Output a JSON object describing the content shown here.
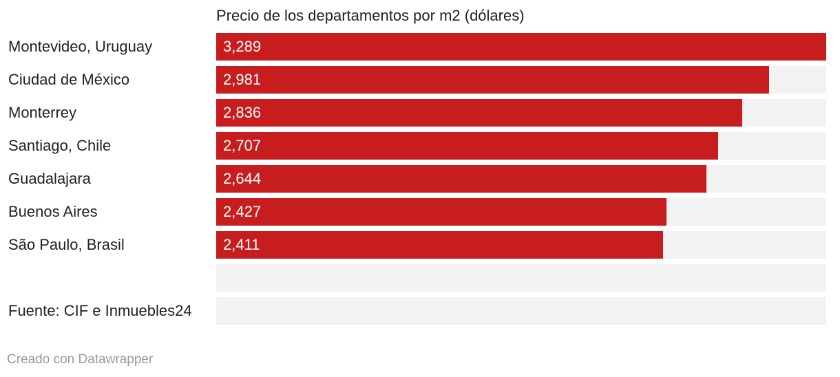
{
  "chart_data": {
    "type": "bar",
    "orientation": "horizontal",
    "title": "Precio de los departamentos por m2 (dólares)",
    "categories": [
      "Montevideo, Uruguay",
      "Ciudad de México",
      "Monterrey",
      "Santiago, Chile",
      "Guadalajara",
      "Buenos Aires",
      "São Paulo, Brasil"
    ],
    "values": [
      3289,
      2981,
      2836,
      2707,
      2644,
      2427,
      2411
    ],
    "value_labels": [
      "3,289",
      "2,981",
      "2,836",
      "2,707",
      "2,644",
      "2,427",
      "2,411"
    ],
    "xlim": [
      0,
      3289
    ],
    "bar_color": "#c81d1f",
    "track_color": "#f2f2f2",
    "extra_rows": [
      "",
      "Fuente: CIF e Inmuebles24"
    ]
  },
  "footer": {
    "credit": "Creado con Datawrapper"
  }
}
